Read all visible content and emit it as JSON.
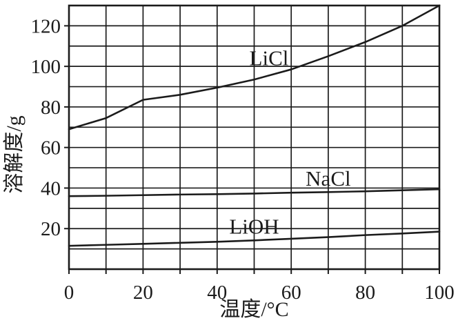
{
  "figure": {
    "background": "#ffffff",
    "ink_color": "#1b1b1b"
  },
  "chart_data": {
    "type": "line",
    "title": "",
    "xlabel": "温度/°C",
    "ylabel": "溶解度/g",
    "xlim": [
      0,
      100
    ],
    "ylim": [
      0,
      130
    ],
    "x_ticks": [
      0,
      20,
      40,
      60,
      80,
      100
    ],
    "y_ticks": [
      20,
      40,
      60,
      80,
      100,
      120
    ],
    "grid": {
      "on": true,
      "x_step": 10,
      "y_step": 10
    },
    "legend_position": "inline-labels-on-curves",
    "x": [
      0,
      10,
      20,
      30,
      40,
      50,
      60,
      70,
      80,
      90,
      100
    ],
    "series": [
      {
        "name": "LiCl",
        "values": [
          69,
          74.5,
          83.5,
          86,
          89.5,
          93.5,
          98.5,
          105,
          112,
          120,
          130
        ],
        "label": "LiCl",
        "label_pos": {
          "x": 54,
          "y": 104
        }
      },
      {
        "name": "NaCl",
        "values": [
          36,
          36.2,
          36.5,
          36.8,
          37,
          37.3,
          37.7,
          38,
          38.4,
          38.9,
          39.4
        ],
        "label": "NaCl",
        "label_pos": {
          "x": 70,
          "y": 44.5
        }
      },
      {
        "name": "LiOH",
        "values": [
          11.5,
          12,
          12.5,
          13,
          13.5,
          14.2,
          15,
          15.8,
          16.8,
          17.6,
          18.5
        ],
        "label": "LiOH",
        "label_pos": {
          "x": 50,
          "y": 21
        }
      }
    ]
  }
}
